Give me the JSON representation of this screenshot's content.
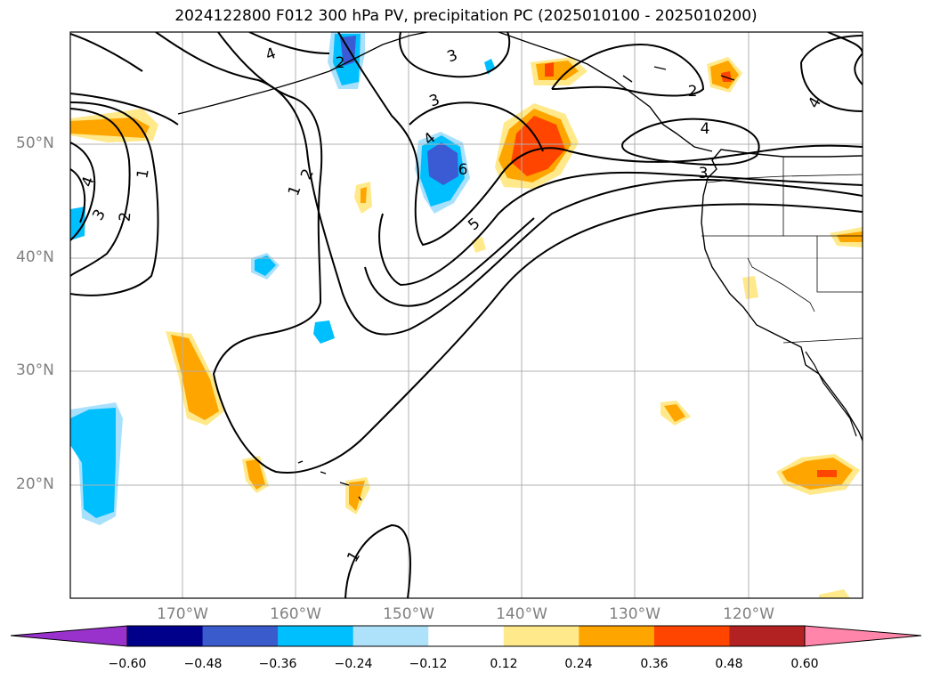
{
  "title": "2024122800 F012 300 hPa PV, precipitation PC (2025010100 - 2025010200)",
  "map": {
    "lat_labels": [
      "50°N",
      "40°N",
      "30°N",
      "20°N"
    ],
    "lon_labels": [
      "170°W",
      "160°W",
      "150°W",
      "140°W",
      "130°W",
      "120°W"
    ],
    "pv_contour_labels": [
      "1",
      "1",
      "1",
      "2",
      "2",
      "2",
      "2",
      "3",
      "3",
      "3",
      "3",
      "4",
      "4",
      "4",
      "4",
      "5",
      "6"
    ],
    "colors": {
      "pos_012": "#ffe98a",
      "pos_024": "#ffa500",
      "pos_036": "#ff4500",
      "neg_024": "#a9e1fd",
      "neg_036": "#00bfff",
      "neg_048": "#3b5bd4"
    }
  },
  "colorbar": {
    "ticks": [
      "−0.60",
      "−0.48",
      "−0.36",
      "−0.24",
      "−0.12",
      "0.12",
      "0.24",
      "0.36",
      "0.48",
      "0.60"
    ],
    "colors": [
      "#9932cc",
      "#00008b",
      "#3a5bcc",
      "#00bfff",
      "#aee2fa",
      "#ffffff",
      "#ffe98a",
      "#ffa500",
      "#ff4500",
      "#b22222",
      "#ff85aa"
    ]
  }
}
